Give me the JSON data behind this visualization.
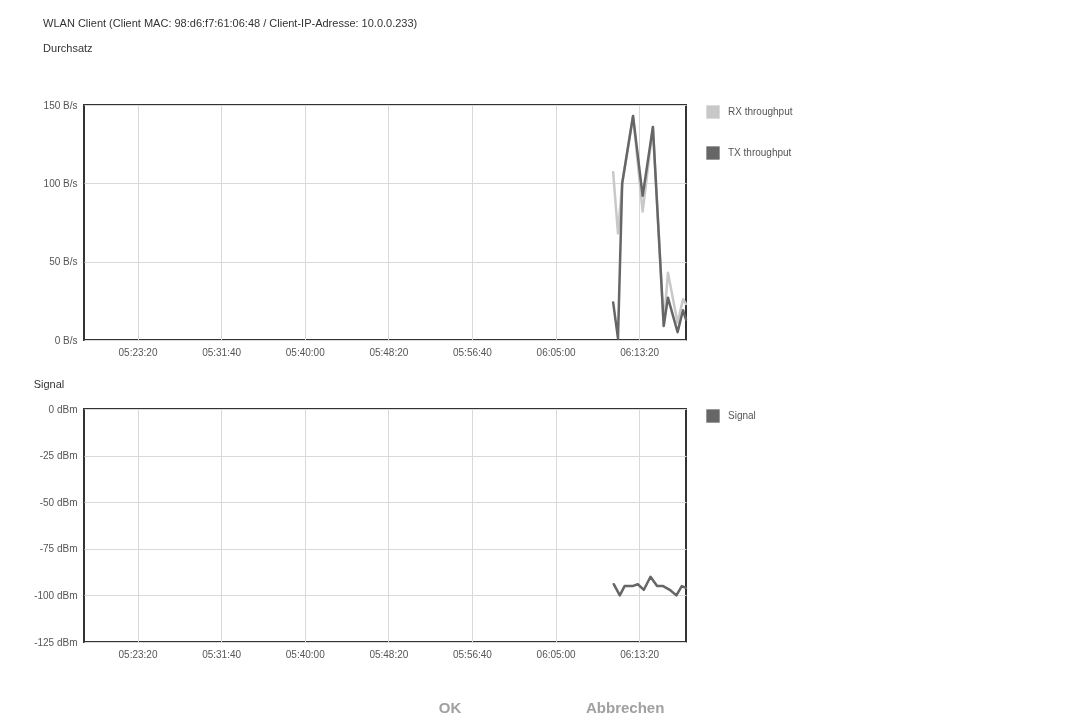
{
  "chart_data": [
    {
      "type": "line",
      "title": "WLAN Client (Client MAC: 98:d6:f7:61:06:48 / Client-IP-Adresse: 10.0.0.233)",
      "subtitle": "Durchsatz",
      "x": [
        6.179,
        6.187,
        6.194,
        6.212,
        6.228,
        6.245,
        6.263,
        6.27,
        6.286,
        6.295,
        6.3
      ],
      "series": [
        {
          "name": "RX throughput",
          "color": "#c8c8c8",
          "values": [
            107,
            68,
            100,
            143,
            82,
            136,
            9,
            43,
            11,
            26,
            23
          ]
        },
        {
          "name": "TX throughput",
          "color": "#666666",
          "values": [
            24,
            1,
            100,
            143,
            92,
            136,
            9,
            27,
            5,
            19,
            13
          ]
        }
      ],
      "xlim": [
        5.3,
        6.3
      ],
      "xticks": [
        {
          "value": 5.388889,
          "label": "05:23:20"
        },
        {
          "value": 5.527778,
          "label": "05:31:40"
        },
        {
          "value": 5.666667,
          "label": "05:40:00"
        },
        {
          "value": 5.805556,
          "label": "05:48:20"
        },
        {
          "value": 5.944444,
          "label": "05:56:40"
        },
        {
          "value": 6.083333,
          "label": "06:05:00"
        },
        {
          "value": 6.222222,
          "label": "06:13:20"
        }
      ],
      "ylim": [
        0,
        150
      ],
      "yticks": [
        {
          "value": 0,
          "label": "0 B/s"
        },
        {
          "value": 50,
          "label": "50 B/s"
        },
        {
          "value": 100,
          "label": "100 B/s"
        },
        {
          "value": 150,
          "label": "150 B/s"
        }
      ],
      "grid": true,
      "legend": "right"
    },
    {
      "type": "line",
      "title": "Signal",
      "x": [
        6.18,
        6.19,
        6.198,
        6.211,
        6.22,
        6.23,
        6.241,
        6.252,
        6.262,
        6.273,
        6.284,
        6.293,
        6.3
      ],
      "series": [
        {
          "name": "Signal",
          "color": "#666666",
          "values": [
            -94,
            -100,
            -95,
            -95,
            -94,
            -97,
            -90,
            -95,
            -95,
            -97,
            -100,
            -95,
            -96
          ]
        }
      ],
      "xlim": [
        5.3,
        6.3
      ],
      "xticks": [
        {
          "value": 5.388889,
          "label": "05:23:20"
        },
        {
          "value": 5.527778,
          "label": "05:31:40"
        },
        {
          "value": 5.666667,
          "label": "05:40:00"
        },
        {
          "value": 5.805556,
          "label": "05:48:20"
        },
        {
          "value": 5.944444,
          "label": "05:56:40"
        },
        {
          "value": 6.083333,
          "label": "06:05:00"
        },
        {
          "value": 6.222222,
          "label": "06:13:20"
        }
      ],
      "ylim": [
        -125,
        0
      ],
      "yticks": [
        {
          "value": 0,
          "label": "0 dBm"
        },
        {
          "value": -25,
          "label": "-25 dBm"
        },
        {
          "value": -50,
          "label": "-50 dBm"
        },
        {
          "value": -75,
          "label": "-75 dBm"
        },
        {
          "value": -100,
          "label": "-100 dBm"
        },
        {
          "value": -125,
          "label": "-125 dBm"
        }
      ],
      "grid": true,
      "legend": "right",
      "annotations": [
        "OK",
        "Abbrechen"
      ]
    }
  ]
}
